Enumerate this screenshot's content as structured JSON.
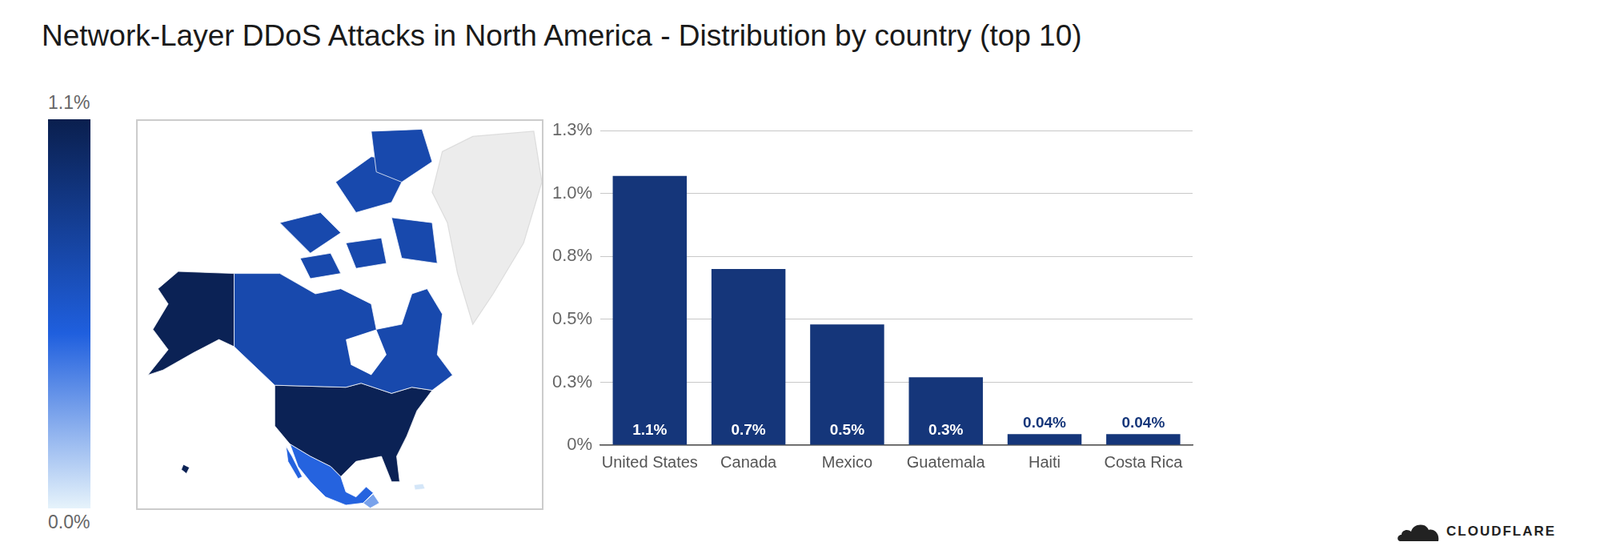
{
  "chart_data": {
    "type": "bar",
    "title": "Network-Layer DDoS Attacks in North America - Distribution by country (top 10)",
    "categories": [
      "United States",
      "Canada",
      "Mexico",
      "Guatemala",
      "Haiti",
      "Costa Rica"
    ],
    "values": [
      1.07,
      0.7,
      0.48,
      0.27,
      0.044,
      0.044
    ],
    "value_labels": [
      "1.1%",
      "0.7%",
      "0.5%",
      "0.3%",
      "0.04%",
      "0.04%"
    ],
    "color": "#15367a",
    "ylim": [
      0,
      1.25
    ],
    "yticks": [
      {
        "value": 0,
        "label": "0%"
      },
      {
        "value": 0.25,
        "label": "0.3%"
      },
      {
        "value": 0.5,
        "label": "0.5%"
      },
      {
        "value": 0.75,
        "label": "0.8%"
      },
      {
        "value": 1.0,
        "label": "1.0%"
      },
      {
        "value": 1.25,
        "label": "1.3%"
      }
    ],
    "grid": true,
    "data_labels": true,
    "colorbar": {
      "range": [
        0,
        1.1
      ],
      "ticks": [
        {
          "value": 0,
          "label": "0.0%"
        },
        {
          "value": 1.1,
          "label": "1.1%"
        }
      ]
    },
    "footer": "CLOUDFLARE"
  }
}
